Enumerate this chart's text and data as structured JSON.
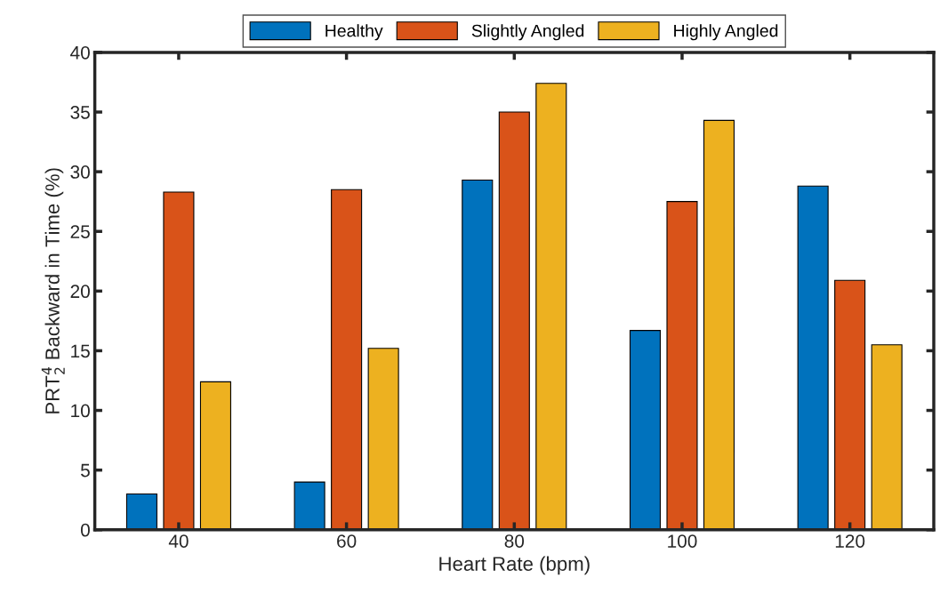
{
  "chart_data": {
    "type": "bar",
    "xlabel": "Heart Rate (bpm)",
    "ylabel": "PRT$^{4}$$_{2}$ Backward in Time (%)",
    "categories": [
      "40",
      "60",
      "80",
      "100",
      "120"
    ],
    "series": [
      {
        "name": "Healthy",
        "color": "#0072bd",
        "values": [
          3.0,
          4.0,
          29.3,
          16.7,
          28.8
        ]
      },
      {
        "name": "Slightly Angled",
        "color": "#d95319",
        "values": [
          28.3,
          28.5,
          35.0,
          27.5,
          20.9
        ]
      },
      {
        "name": "Highly Angled",
        "color": "#edb120",
        "values": [
          12.4,
          15.2,
          37.4,
          34.3,
          15.5
        ]
      }
    ],
    "ylim": [
      0,
      40
    ],
    "yticks": [
      0,
      5,
      10,
      15,
      20,
      25,
      30,
      35,
      40
    ],
    "grid": false,
    "legend": "top"
  }
}
